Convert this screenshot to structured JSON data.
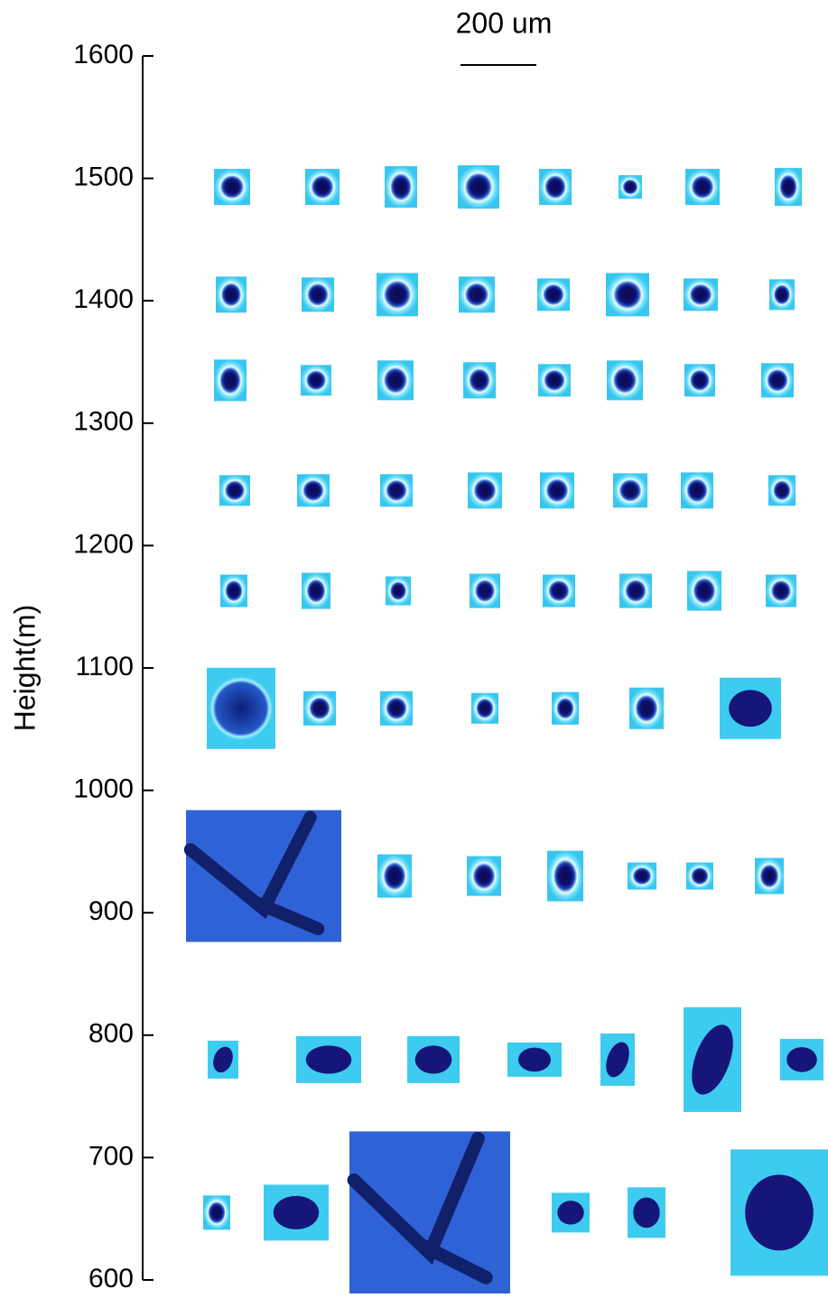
{
  "chart_data": {
    "type": "image-rows",
    "ylabel": "Height(m)",
    "scale_label": "200 um",
    "ylim": [
      600,
      1600
    ],
    "yticks": [
      600,
      700,
      800,
      900,
      1000,
      1100,
      1200,
      1300,
      1400,
      1500,
      1600
    ],
    "rows": [
      1493,
      1405,
      1335,
      1245,
      1163,
      1067,
      930,
      780,
      655
    ],
    "color": "#3ecbf0"
  }
}
